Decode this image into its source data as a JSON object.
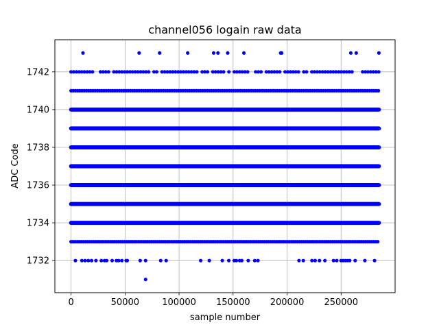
{
  "chart_data": {
    "type": "scatter",
    "title": "channel056 logain raw data",
    "xlabel": "sample number",
    "ylabel": "ADC Code",
    "xlim": [
      -15000,
      300000
    ],
    "ylim": [
      1730.3,
      1743.7
    ],
    "xticks": [
      0,
      50000,
      100000,
      150000,
      200000,
      250000
    ],
    "yticks": [
      1732,
      1734,
      1736,
      1738,
      1740,
      1742
    ],
    "grid": true,
    "marker_color": "#0000ff",
    "x_max_sample": 285000,
    "dense_levels": [
      1733,
      1734,
      1735,
      1736,
      1737,
      1738,
      1739,
      1740,
      1741,
      1742
    ],
    "sparse_points": {
      "1743": [
        11000,
        63000,
        82000,
        108000,
        132000,
        136000,
        145000,
        160000,
        194000,
        195000,
        259000,
        264000,
        285000
      ],
      "1732": [
        4000,
        10000,
        13000,
        16000,
        19000,
        23000,
        28000,
        31000,
        33000,
        38000,
        42000,
        44000,
        47000,
        51000,
        52000,
        64000,
        69000,
        83000,
        88000,
        120000,
        128000,
        140000,
        146000,
        151000,
        153000,
        156000,
        158000,
        164000,
        170000,
        173000,
        211000,
        215000,
        223000,
        226000,
        230000,
        235000,
        243000,
        246000,
        250000,
        252000,
        254000,
        256000,
        258000,
        263000,
        272000,
        281000
      ],
      "1731": [
        69000
      ]
    }
  }
}
